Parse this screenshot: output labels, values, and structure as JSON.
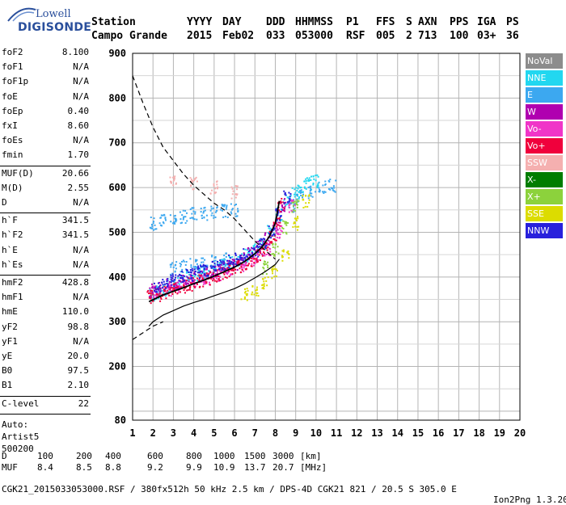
{
  "logo": {
    "word": "Lowell",
    "brand": "DIGISONDE"
  },
  "header": {
    "labels": [
      "Station",
      "YYYY",
      "DAY",
      "DDD",
      "HHMMSS",
      "P1",
      "FFS",
      "S",
      "AXN",
      "PPS",
      "IGA",
      "PS"
    ],
    "values": [
      "Campo Grande",
      "2015",
      "Feb02",
      "033",
      "053000",
      "RSF",
      "005",
      "2",
      "713",
      "100",
      "03+",
      "36"
    ]
  },
  "params_group1": [
    {
      "key": "foF2",
      "val": "8.100"
    },
    {
      "key": "foF1",
      "val": "N/A"
    },
    {
      "key": "foF1p",
      "val": "N/A"
    },
    {
      "key": "foE",
      "val": "N/A"
    },
    {
      "key": "foEp",
      "val": "0.40"
    },
    {
      "key": "fxI",
      "val": "8.60"
    },
    {
      "key": "foEs",
      "val": "N/A"
    },
    {
      "key": "fmin",
      "val": "1.70"
    }
  ],
  "params_group2": [
    {
      "key": "MUF(D)",
      "val": "20.66"
    },
    {
      "key": "M(D)",
      "val": "2.55"
    },
    {
      "key": "D",
      "val": "N/A"
    }
  ],
  "params_group3": [
    {
      "key": "h`F",
      "val": "341.5"
    },
    {
      "key": "h`F2",
      "val": "341.5"
    },
    {
      "key": "h`E",
      "val": "N/A"
    },
    {
      "key": "h`Es",
      "val": "N/A"
    }
  ],
  "params_group4": [
    {
      "key": "hmF2",
      "val": "428.8"
    },
    {
      "key": "hmF1",
      "val": "N/A"
    },
    {
      "key": "hmE",
      "val": "110.0"
    },
    {
      "key": "yF2",
      "val": "98.8"
    },
    {
      "key": "yF1",
      "val": "N/A"
    },
    {
      "key": "yE",
      "val": "20.0"
    },
    {
      "key": "B0",
      "val": "97.5"
    },
    {
      "key": "B1",
      "val": "2.10"
    }
  ],
  "clevel": {
    "key": "C-level",
    "val": "22"
  },
  "auto": {
    "label": "Auto:",
    "name": "Artist5",
    "version": "500200"
  },
  "legend": [
    {
      "label": "NoVal",
      "color": "#8c8c8c"
    },
    {
      "label": "NNE",
      "color": "#22d7f0"
    },
    {
      "label": "E",
      "color": "#3ca8f0"
    },
    {
      "label": "W",
      "color": "#b000b0"
    },
    {
      "label": "Vo-",
      "color": "#f035c8"
    },
    {
      "label": "Vo+",
      "color": "#f0003c"
    },
    {
      "label": "SSW",
      "color": "#f5b0b0"
    },
    {
      "label": "X-",
      "color": "#007d00"
    },
    {
      "label": "X+",
      "color": "#8cd23c"
    },
    {
      "label": "SSE",
      "color": "#dcdc00"
    },
    {
      "label": "NNW",
      "color": "#2820dc"
    }
  ],
  "footer": {
    "d_label": "D",
    "d_values": [
      "100",
      "200",
      "400",
      "600",
      "800",
      "1000",
      "1500",
      "3000"
    ],
    "d_unit": "[km]",
    "muf_label": "MUF",
    "muf_values": [
      "8.4",
      "8.5",
      "8.8",
      "9.2",
      "9.9",
      "10.9",
      "13.7",
      "20.7"
    ],
    "muf_unit": "[MHz]",
    "file_line": "CGK21_2015033053000.RSF / 380fx512h 50 kHz 2.5 km / DPS-4D CGK21 821 / 20.5 S 305.0 E",
    "software": "Ion2Png 1.3.20"
  },
  "chart_data": {
    "type": "scatter",
    "xlim": [
      1,
      20
    ],
    "ylim": [
      80,
      900
    ],
    "x_ticks": [
      1,
      2,
      3,
      4,
      5,
      6,
      7,
      8,
      9,
      10,
      11,
      12,
      13,
      14,
      15,
      16,
      17,
      18,
      19,
      20
    ],
    "y_ticks": [
      80,
      200,
      300,
      400,
      500,
      600,
      700,
      800,
      900
    ],
    "grid": true,
    "legend_position": "right",
    "series": [
      {
        "name": "NNE",
        "color": "#22d7f0",
        "x": [
          2.0,
          2.3,
          2.6,
          3.0,
          3.4,
          3.8,
          4.2,
          4.6,
          5.0,
          5.4,
          5.8,
          6.2,
          6.6,
          7.0,
          7.4,
          7.8,
          8.2,
          8.6,
          9.0,
          9.3,
          9.6,
          10.0
        ],
        "y": [
          360,
          365,
          372,
          380,
          390,
          398,
          405,
          412,
          418,
          425,
          432,
          440,
          448,
          460,
          475,
          500,
          540,
          570,
          590,
          600,
          610,
          615
        ]
      },
      {
        "name": "E",
        "color": "#3ca8f0",
        "x": [
          2.0,
          2.5,
          3.0,
          3.5,
          4.0,
          4.5,
          5.0,
          5.5,
          6.0,
          3.0,
          3.5,
          4.0,
          4.5,
          5.0,
          5.5,
          8.8,
          9.2,
          9.8,
          10.3,
          10.8
        ],
        "y": [
          520,
          525,
          530,
          535,
          540,
          542,
          545,
          548,
          550,
          420,
          425,
          430,
          432,
          435,
          440,
          560,
          580,
          590,
          600,
          605
        ]
      },
      {
        "name": "W",
        "color": "#b000b0",
        "x": [
          2.0,
          2.4,
          2.8,
          3.2,
          3.6,
          4.0,
          4.4,
          4.8,
          5.2,
          5.6,
          6.0,
          6.4,
          6.8,
          7.2,
          7.6,
          8.0,
          8.4
        ],
        "y": [
          370,
          375,
          380,
          385,
          392,
          398,
          404,
          410,
          416,
          422,
          430,
          440,
          452,
          466,
          485,
          510,
          560
        ]
      },
      {
        "name": "Vo-",
        "color": "#f035c8",
        "x": [
          2.2,
          2.8,
          3.4,
          4.0,
          4.6,
          5.2,
          5.8,
          6.4,
          7.0,
          7.6,
          8.2,
          8.8
        ],
        "y": [
          365,
          372,
          380,
          390,
          398,
          406,
          415,
          425,
          440,
          462,
          500,
          560
        ]
      },
      {
        "name": "Vo+",
        "color": "#f0003c",
        "x": [
          1.9,
          2.3,
          2.7,
          3.1,
          3.5,
          3.9,
          4.3,
          4.7,
          5.1,
          5.5,
          5.9,
          6.3,
          6.7,
          7.1,
          7.5,
          7.9,
          8.1,
          8.3
        ],
        "y": [
          355,
          360,
          366,
          372,
          378,
          384,
          390,
          396,
          402,
          408,
          415,
          423,
          432,
          445,
          462,
          490,
          520,
          560
        ]
      },
      {
        "name": "NNW",
        "color": "#2820dc",
        "x": [
          2.2,
          2.6,
          3.0,
          3.4,
          3.8,
          4.2,
          4.6,
          5.0,
          5.4,
          5.8,
          6.2,
          6.6,
          7.0,
          7.4,
          7.8,
          8.2,
          8.6
        ],
        "y": [
          380,
          386,
          392,
          398,
          404,
          410,
          416,
          422,
          428,
          434,
          440,
          448,
          460,
          476,
          500,
          540,
          580
        ]
      },
      {
        "name": "SSE",
        "color": "#dcdc00",
        "x": [
          6.5,
          7.0,
          7.5,
          8.0,
          8.5,
          9.0,
          9.5
        ],
        "y": [
          360,
          370,
          385,
          410,
          450,
          520,
          570
        ]
      },
      {
        "name": "X+",
        "color": "#8cd23c",
        "x": [
          7.5,
          8.0,
          8.5,
          9.0
        ],
        "y": [
          420,
          460,
          510,
          560
        ]
      },
      {
        "name": "SSW",
        "color": "#f5b0b0",
        "x": [
          3.0,
          4.0,
          5.0,
          6.0
        ],
        "y": [
          620,
          610,
          600,
          590
        ]
      }
    ],
    "trace_solid_upper": {
      "x": [
        1.8,
        2.5,
        3.0,
        3.5,
        4.0,
        4.5,
        5.0,
        5.5,
        6.0,
        6.5,
        7.0,
        7.4,
        7.7,
        8.0,
        8.1,
        8.2
      ],
      "y": [
        345,
        360,
        368,
        376,
        385,
        393,
        402,
        412,
        422,
        435,
        452,
        470,
        490,
        520,
        545,
        570
      ]
    },
    "trace_solid_lower": {
      "x": [
        1.8,
        2.0,
        2.5,
        3.0,
        3.5,
        4.0,
        4.5,
        5.0,
        5.5,
        6.0,
        6.5,
        7.0,
        7.5,
        8.0,
        8.2
      ],
      "y": [
        290,
        300,
        315,
        325,
        335,
        343,
        350,
        358,
        366,
        374,
        385,
        398,
        412,
        428,
        440
      ]
    },
    "trace_dashed": {
      "x": [
        1.0,
        1.5,
        2.0,
        2.5,
        3.0,
        3.5,
        4.0,
        4.5,
        5.0,
        5.5,
        6.0,
        6.5,
        7.0,
        7.5,
        8.0
      ],
      "y": [
        850,
        790,
        735,
        690,
        660,
        630,
        605,
        585,
        565,
        550,
        530,
        505,
        480,
        460,
        440
      ]
    },
    "trace_dashed_low": {
      "x": [
        1.0,
        1.5,
        2.0,
        2.5
      ],
      "y": [
        260,
        275,
        290,
        300
      ]
    }
  }
}
